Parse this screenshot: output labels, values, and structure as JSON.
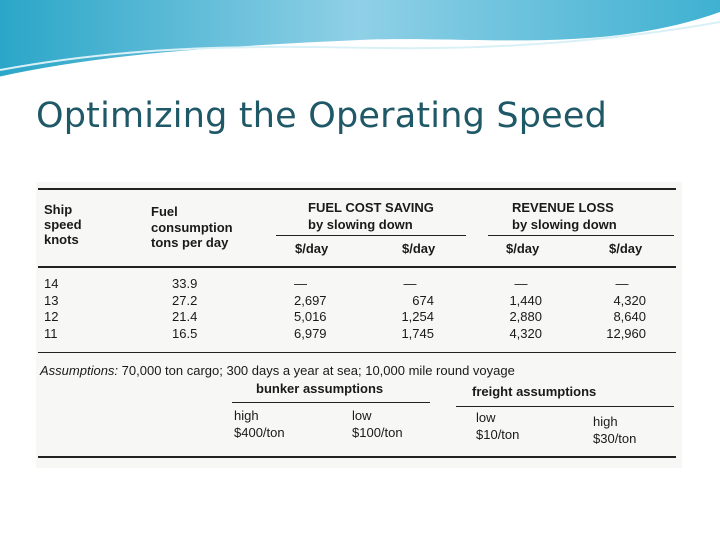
{
  "slide": {
    "title": "Optimizing the Operating Speed"
  },
  "table": {
    "headers": {
      "ship_speed": [
        "Ship",
        "speed",
        "knots"
      ],
      "fuel": [
        "Fuel",
        "consumption",
        "tons per day"
      ],
      "fuel_cost_saving": [
        "FUEL COST SAVING",
        "by slowing down"
      ],
      "revenue_loss": [
        "REVENUE LOSS",
        "by slowing down"
      ],
      "unit_fcs_1": "$/day",
      "unit_fcs_2": "$/day",
      "unit_rl_1": "$/day",
      "unit_rl_2": "$/day"
    },
    "rows": [
      {
        "speed": "14",
        "fuel": "33.9",
        "fcs_high": "—",
        "fcs_low": "—",
        "rl_low": "—",
        "rl_high": "—"
      },
      {
        "speed": "13",
        "fuel": "27.2",
        "fcs_high": "2,697",
        "fcs_low": "674",
        "rl_low": "1,440",
        "rl_high": "4,320"
      },
      {
        "speed": "12",
        "fuel": "21.4",
        "fcs_high": "5,016",
        "fcs_low": "1,254",
        "rl_low": "2,880",
        "rl_high": "8,640"
      },
      {
        "speed": "11",
        "fuel": "16.5",
        "fcs_high": "6,979",
        "fcs_low": "1,745",
        "rl_low": "4,320",
        "rl_high": "12,960"
      }
    ],
    "assumptions": {
      "label": "Assumptions:",
      "text": "70,000 ton cargo; 300 days a year at sea; 10,000 mile round voyage",
      "bunker": "bunker assumptions",
      "freight": "freight",
      "freight_suffix": "assumptions",
      "bunker_high_label": "high",
      "bunker_high_value": "$400/ton",
      "bunker_low_label": "low",
      "bunker_low_value": "$100/ton",
      "freight_low_label": "low",
      "freight_low_value": "$10/ton",
      "freight_high_label": "high",
      "freight_high_value": "$30/ton"
    }
  },
  "colors": {
    "title": "#1f5866",
    "wave_dark": "#2ba6c8",
    "wave_light": "#bfe6f2"
  }
}
